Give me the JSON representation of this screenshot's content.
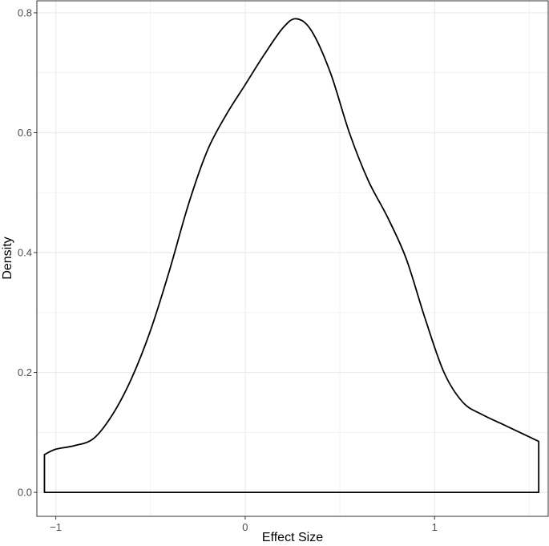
{
  "chart_data": {
    "type": "area",
    "title": "",
    "xlabel": "Effect Size",
    "ylabel": "Density",
    "xlim": [
      -1.1,
      1.6
    ],
    "ylim": [
      -0.04,
      0.82
    ],
    "x_ticks": [
      -1,
      0,
      1
    ],
    "x_tick_labels": [
      "−1",
      "0",
      "1"
    ],
    "y_ticks": [
      0.0,
      0.2,
      0.4,
      0.6,
      0.8
    ],
    "y_tick_labels": [
      "0.0",
      "0.2",
      "0.4",
      "0.6",
      "0.8"
    ],
    "grid": true,
    "series": [
      {
        "x": [
          -1.06,
          -1.0,
          -0.9,
          -0.8,
          -0.7,
          -0.6,
          -0.5,
          -0.4,
          -0.3,
          -0.2,
          -0.1,
          0.0,
          0.1,
          0.2,
          0.27,
          0.35,
          0.45,
          0.55,
          0.65,
          0.75,
          0.85,
          0.95,
          1.05,
          1.15,
          1.25,
          1.35,
          1.45,
          1.55
        ],
        "y": [
          0.063,
          0.072,
          0.078,
          0.09,
          0.13,
          0.19,
          0.27,
          0.37,
          0.48,
          0.57,
          0.63,
          0.68,
          0.73,
          0.775,
          0.79,
          0.77,
          0.7,
          0.6,
          0.52,
          0.46,
          0.39,
          0.29,
          0.2,
          0.15,
          0.13,
          0.115,
          0.1,
          0.085
        ]
      }
    ]
  },
  "colors": {
    "line": "#000000",
    "grid": "#ebebeb",
    "panel_border": "#333333",
    "tick_text": "#4d4d4d"
  }
}
